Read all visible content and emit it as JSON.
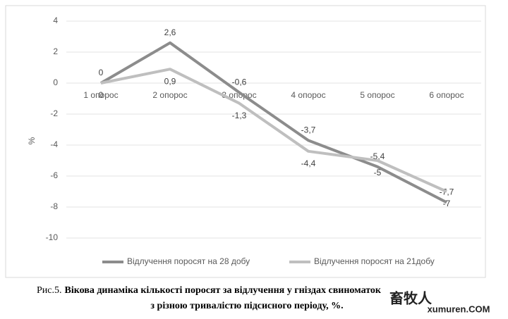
{
  "chart_data": {
    "type": "line",
    "categories": [
      "1 опорос",
      "2 опорос",
      "3 опорос",
      "4 опорос",
      "5 опорос",
      "6 опорос"
    ],
    "series": [
      {
        "name": "Відлучення поросят на 28 добу",
        "color": "#8c8c8c",
        "values": [
          0,
          2.6,
          -0.6,
          -3.7,
          -5.4,
          -7.7
        ],
        "value_labels": [
          "0",
          "2,6",
          "-0,6",
          "-3,7",
          "-5,4",
          "-7,7"
        ]
      },
      {
        "name": "Відлучення поросят на 21добу",
        "color": "#bfbfbf",
        "values": [
          0,
          0.9,
          -1.3,
          -4.4,
          -5,
          -7
        ],
        "value_labels": [
          "0",
          "0,9",
          "-1,3",
          "-4,4",
          "-5",
          "-7"
        ]
      }
    ],
    "y_label": "%",
    "ylim": [
      -10,
      4
    ],
    "yticks": [
      4,
      2,
      0,
      -2,
      -4,
      -6,
      -8,
      -10
    ],
    "grid": true,
    "legend": "bottom"
  },
  "caption": {
    "prefix": "Рис.5.",
    "lines": [
      "Вікова динаміка кількості поросят за відлучення у гніздах свиноматок",
      "з різною тривалістю підсисного періоду, %."
    ]
  },
  "watermark": {
    "logo": "畜牧人",
    "site": "xumuren.COM"
  }
}
